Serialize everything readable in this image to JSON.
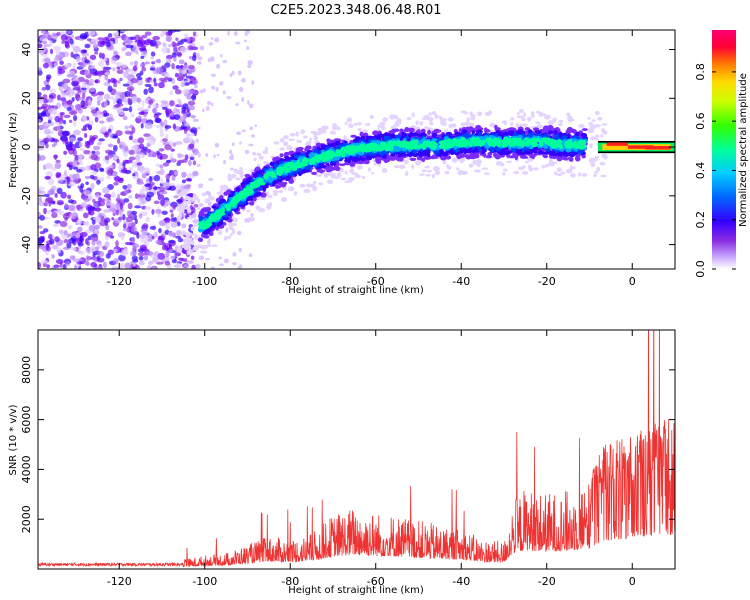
{
  "title": "C2E5.2023.348.06.48.R01",
  "chart_data": [
    {
      "type": "heatmap",
      "xlabel": "Height of straight line (km)",
      "ylabel": "Frequency (Hz)",
      "xlim": [
        -139,
        10
      ],
      "ylim": [
        -50,
        48
      ],
      "xticks": [
        -120,
        -100,
        -80,
        -60,
        -40,
        -20,
        0
      ],
      "yticks": [
        -40,
        -20,
        0,
        20,
        40
      ],
      "colorbar": {
        "label": "Normalized spectral amplitude",
        "range": [
          0,
          0.97
        ],
        "ticks": [
          0.0,
          0.2,
          0.4,
          0.6,
          0.8
        ]
      },
      "ridge": {
        "description_points_x": [
          -100,
          -95,
          -90,
          -85,
          -80,
          -75,
          -70,
          -65,
          -60,
          -55,
          -50,
          -45,
          -40,
          -35,
          -30,
          -25,
          -20,
          -15,
          -10,
          -5,
          0,
          10
        ],
        "description_points_y": [
          -32,
          -25,
          -18,
          -12,
          -8,
          -5,
          -3,
          -1,
          0,
          1,
          1,
          1,
          2,
          2,
          2,
          2,
          2,
          1,
          1,
          1,
          0,
          0
        ]
      }
    },
    {
      "type": "line",
      "xlabel": "Height of straight line (km)",
      "ylabel": "SNR (10 * v/v)",
      "xlim": [
        -139,
        10
      ],
      "ylim": [
        0,
        9600
      ],
      "xticks": [
        -120,
        -100,
        -80,
        -60,
        -40,
        -20,
        0
      ],
      "yticks": [
        2000,
        4000,
        6000,
        8000
      ],
      "color": "#ee3333",
      "envelope_x": [
        -139,
        -110,
        -100,
        -95,
        -90,
        -85,
        -80,
        -75,
        -70,
        -65,
        -60,
        -55,
        -50,
        -45,
        -40,
        -35,
        -30,
        -28,
        -25,
        -20,
        -15,
        -12,
        -10,
        -7,
        -5,
        0,
        5,
        10
      ],
      "envelope_y": [
        150,
        200,
        500,
        600,
        900,
        1200,
        1100,
        1300,
        2000,
        2300,
        2100,
        2000,
        1800,
        1600,
        1500,
        1100,
        1000,
        2500,
        3000,
        2800,
        2900,
        3200,
        3300,
        4500,
        4600,
        5000,
        5300,
        5600
      ]
    }
  ]
}
